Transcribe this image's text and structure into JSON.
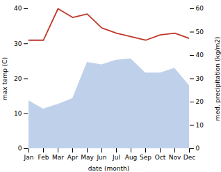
{
  "chart_data": {
    "type": "line",
    "categories": [
      "Jan",
      "Feb",
      "Mar",
      "Apr",
      "May",
      "Jun",
      "Jul",
      "Aug",
      "Sep",
      "Oct",
      "Nov",
      "Dec"
    ],
    "xlabel": "date (month)",
    "ylabel": "max temp (C)",
    "y2label": "med. precipitation (kg/m2)",
    "series": [
      {
        "type": "area",
        "axis": "y2",
        "color": "#b8cce8",
        "values": [
          20.5,
          17.0,
          19.0,
          21.5,
          37.0,
          36.0,
          38.0,
          38.5,
          32.5,
          32.5,
          34.5,
          27.0
        ]
      },
      {
        "type": "line",
        "color": "#c0392b",
        "values": [
          31.0,
          31.0,
          40.0,
          37.5,
          38.5,
          34.5,
          33.0,
          32.0,
          31.0,
          32.5,
          33.0,
          31.5
        ]
      }
    ],
    "ylim": [
      0,
      40
    ],
    "yticks": [
      0,
      10,
      20,
      30,
      40
    ],
    "y2lim": [
      0,
      60
    ],
    "y2ticks": [
      0,
      10,
      20,
      30,
      40,
      50,
      60
    ],
    "grid": false
  }
}
